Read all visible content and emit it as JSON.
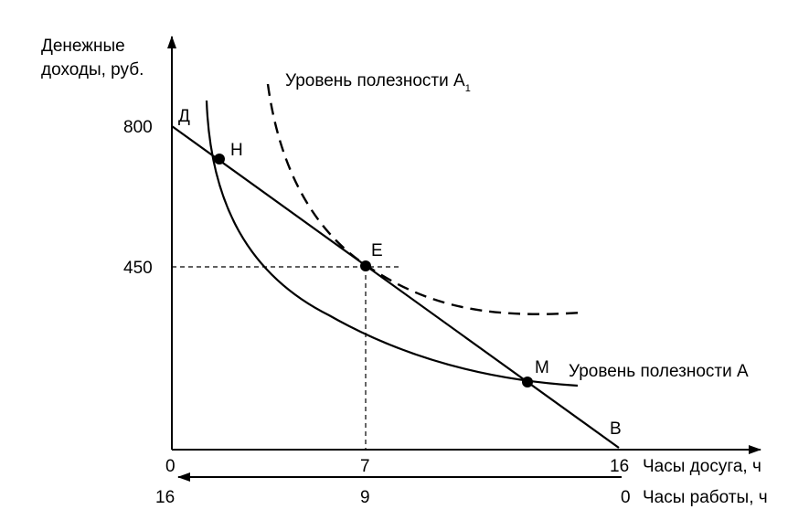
{
  "y_axis": {
    "label_lines": [
      "Денежные",
      "доходы, руб."
    ],
    "ticks": [
      "800",
      "450"
    ]
  },
  "x_axis_leisure": {
    "label": "Часы досуга, ч",
    "ticks": [
      "0",
      "7",
      "16"
    ]
  },
  "x_axis_work": {
    "label": "Часы работы, ч",
    "ticks": [
      "16",
      "9",
      "0"
    ]
  },
  "points": [
    "Д",
    "Н",
    "Е",
    "М",
    "В"
  ],
  "curves": {
    "utility_a1": {
      "label": "Уровень полезности A",
      "subscript": "1"
    },
    "utility_a": {
      "label": "Уровень полезности А"
    }
  }
}
